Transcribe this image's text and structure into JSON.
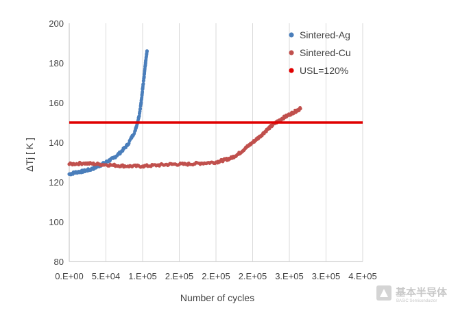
{
  "chart_data": {
    "type": "scatter",
    "title": "",
    "xlabel": "Number of cycles",
    "ylabel": "ΔTj [ K ]",
    "xlim": [
      0,
      400000
    ],
    "ylim": [
      80,
      200
    ],
    "x_ticks": [
      0,
      50000,
      100000,
      150000,
      200000,
      250000,
      300000,
      350000,
      400000
    ],
    "x_tick_labels": [
      "0.E+00",
      "5.E+04",
      "1.E+05",
      "2.E+05",
      "2.E+05",
      "2.E+05",
      "3.E+05",
      "3.E+05",
      "4.E+05"
    ],
    "y_ticks": [
      80,
      100,
      120,
      140,
      160,
      180,
      200
    ],
    "y_tick_labels": [
      "80",
      "100",
      "120",
      "140",
      "160",
      "180",
      "200"
    ],
    "grid": "vertical",
    "legend_position": "top-right",
    "series": [
      {
        "name": "Sintered-Ag",
        "kind": "scatter",
        "color": "#4a7ebb",
        "points": [
          [
            0,
            124
          ],
          [
            10000,
            125
          ],
          [
            20000,
            125.5
          ],
          [
            30000,
            126.5
          ],
          [
            40000,
            128
          ],
          [
            50000,
            130
          ],
          [
            60000,
            132
          ],
          [
            70000,
            135
          ],
          [
            80000,
            139
          ],
          [
            90000,
            146
          ],
          [
            95000,
            153
          ],
          [
            98000,
            160
          ],
          [
            100000,
            167
          ],
          [
            102000,
            173
          ],
          [
            104000,
            180
          ],
          [
            106000,
            186
          ]
        ]
      },
      {
        "name": "Sintered-Cu",
        "kind": "scatter",
        "color": "#c0504d",
        "points": [
          [
            0,
            129
          ],
          [
            20000,
            129.5
          ],
          [
            40000,
            129
          ],
          [
            60000,
            128.5
          ],
          [
            80000,
            128
          ],
          [
            100000,
            128
          ],
          [
            120000,
            128.5
          ],
          [
            140000,
            129
          ],
          [
            160000,
            129
          ],
          [
            180000,
            129.5
          ],
          [
            200000,
            130
          ],
          [
            210000,
            131
          ],
          [
            220000,
            132
          ],
          [
            230000,
            134
          ],
          [
            240000,
            137
          ],
          [
            250000,
            140
          ],
          [
            260000,
            143
          ],
          [
            270000,
            146.5
          ],
          [
            280000,
            149.5
          ],
          [
            290000,
            152
          ],
          [
            300000,
            154
          ],
          [
            310000,
            156
          ],
          [
            315000,
            157
          ]
        ]
      },
      {
        "name": "USL=120%",
        "kind": "line",
        "color": "#e00000",
        "value": 150
      }
    ]
  },
  "watermark": {
    "name_cn": "基本半导体",
    "name_en": "BASiC Semiconductor"
  }
}
